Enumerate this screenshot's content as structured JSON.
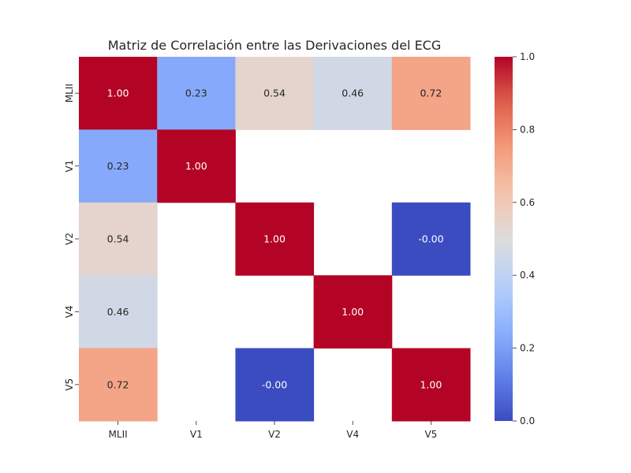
{
  "chart_data": {
    "type": "heatmap",
    "title": "Matriz de Correlación entre las Derivaciones del ECG",
    "x_labels": [
      "MLII",
      "V1",
      "V2",
      "V4",
      "V5"
    ],
    "y_labels": [
      "MLII",
      "V1",
      "V2",
      "V4",
      "V5"
    ],
    "values": [
      [
        1.0,
        0.23,
        0.54,
        0.46,
        0.72
      ],
      [
        0.23,
        1.0,
        null,
        null,
        null
      ],
      [
        0.54,
        null,
        1.0,
        null,
        -0.0
      ],
      [
        0.46,
        null,
        null,
        1.0,
        null
      ],
      [
        0.72,
        null,
        -0.0,
        null,
        1.0
      ]
    ],
    "cell_labels": [
      [
        "1.00",
        "0.23",
        "0.54",
        "0.46",
        "0.72"
      ],
      [
        "0.23",
        "1.00",
        "",
        "",
        ""
      ],
      [
        "0.54",
        "",
        "1.00",
        "",
        "-0.00"
      ],
      [
        "0.46",
        "",
        "",
        "1.00",
        ""
      ],
      [
        "0.72",
        "",
        "-0.00",
        "",
        "1.00"
      ]
    ],
    "colormap": "coolwarm",
    "vmin": 0.0,
    "vmax": 1.0,
    "colorbar_ticks": [
      "0.0",
      "0.2",
      "0.4",
      "0.6",
      "0.8",
      "1.0"
    ],
    "colorbar_tick_values": [
      0.0,
      0.2,
      0.4,
      0.6,
      0.8,
      1.0
    ],
    "colorbar_placement": "right"
  }
}
